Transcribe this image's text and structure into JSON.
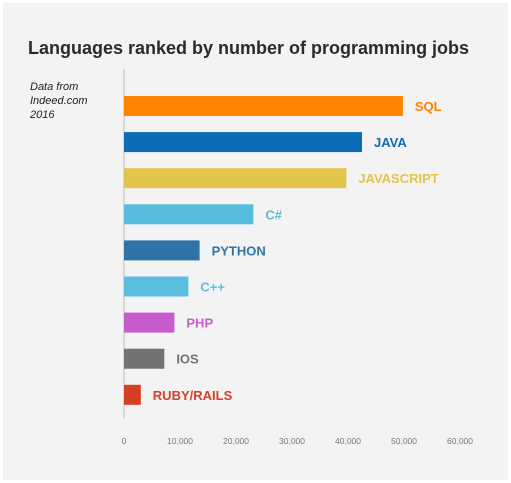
{
  "title": "Languages ranked by number of programming jobs",
  "source_lines": [
    "Data from",
    "Indeed.com",
    "2016"
  ],
  "chart_data": {
    "type": "bar",
    "orientation": "horizontal",
    "title": "Languages ranked by number of programming jobs",
    "xlim": [
      0,
      60000
    ],
    "x_ticks": [
      "0",
      "10,000",
      "20,000",
      "30,000",
      "40,000",
      "50,000",
      "60,000"
    ],
    "grid": false,
    "categories": [
      "SQL",
      "JAVA",
      "JAVASCRIPT",
      "C#",
      "PYTHON",
      "C++",
      "PHP",
      "IOS",
      "RUBY/RAILS"
    ],
    "values": [
      49800,
      42500,
      39700,
      23100,
      13500,
      11500,
      9000,
      7200,
      3000
    ],
    "colors": [
      "#ff8200",
      "#0a6db5",
      "#e2c54a",
      "#58bddc",
      "#2e74a8",
      "#5bbfdf",
      "#c85bcb",
      "#727272",
      "#d63f24"
    ]
  }
}
